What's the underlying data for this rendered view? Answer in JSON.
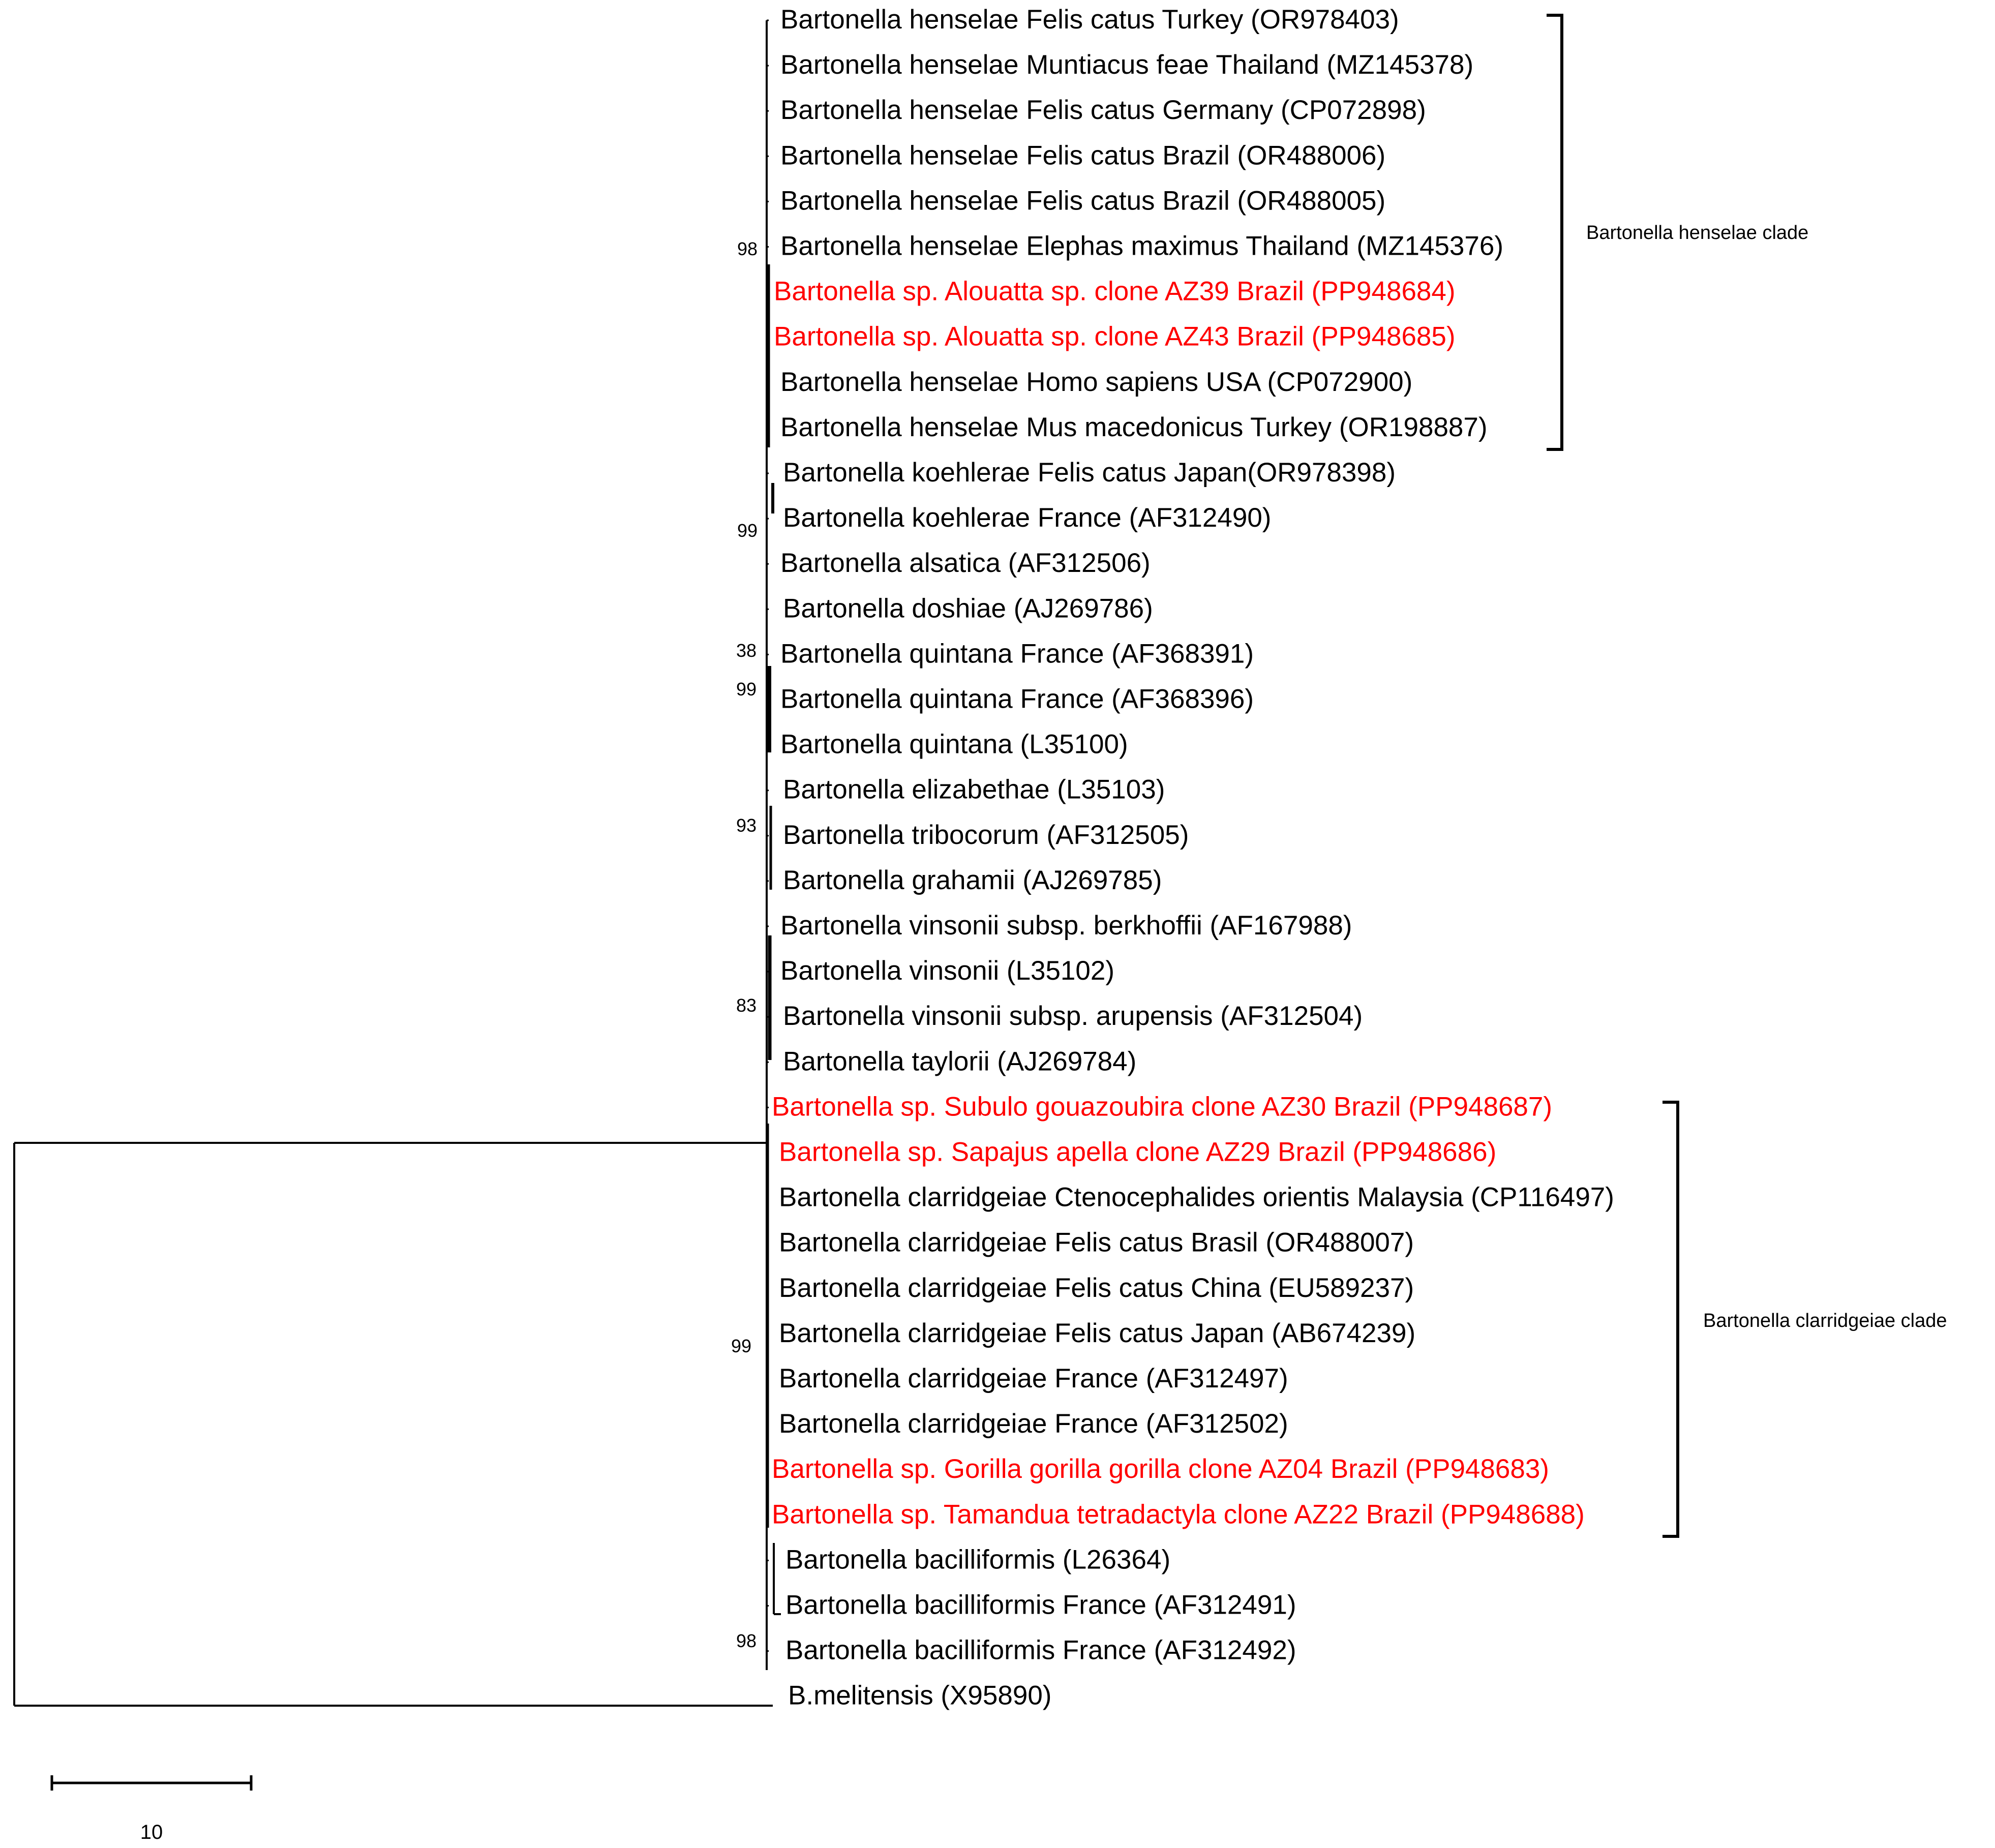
{
  "colors": {
    "default": "#000000",
    "highlight": "#ff0000",
    "background": "#ffffff"
  },
  "taxa": [
    {
      "label": "Bartonella henselae Felis catus Turkey (OR978403)",
      "highlight": false
    },
    {
      "label": "Bartonella henselae Muntiacus feae Thailand (MZ145378)",
      "highlight": false
    },
    {
      "label": "Bartonella henselae Felis catus Germany (CP072898)",
      "highlight": false
    },
    {
      "label": "Bartonella henselae Felis catus Brazil (OR488006)",
      "highlight": false
    },
    {
      "label": "Bartonella henselae Felis catus Brazil (OR488005)",
      "highlight": false
    },
    {
      "label": "Bartonella henselae Elephas maximus Thailand (MZ145376)",
      "highlight": false
    },
    {
      "label": "Bartonella sp. Alouatta sp. clone AZ39 Brazil (PP948684)",
      "highlight": true
    },
    {
      "label": "Bartonella sp. Alouatta sp. clone AZ43 Brazil (PP948685)",
      "highlight": true
    },
    {
      "label": "Bartonella henselae Homo sapiens USA (CP072900)",
      "highlight": false
    },
    {
      "label": "Bartonella henselae Mus macedonicus Turkey (OR198887)",
      "highlight": false
    },
    {
      "label": "Bartonella koehlerae Felis catus Japan(OR978398)",
      "highlight": false
    },
    {
      "label": "Bartonella koehlerae France (AF312490)",
      "highlight": false
    },
    {
      "label": "Bartonella alsatica (AF312506)",
      "highlight": false
    },
    {
      "label": "Bartonella doshiae (AJ269786)",
      "highlight": false
    },
    {
      "label": "Bartonella quintana France (AF368391)",
      "highlight": false
    },
    {
      "label": "Bartonella quintana France (AF368396)",
      "highlight": false
    },
    {
      "label": "Bartonella quintana (L35100)",
      "highlight": false
    },
    {
      "label": "Bartonella elizabethae (L35103)",
      "highlight": false
    },
    {
      "label": "Bartonella tribocorum (AF312505)",
      "highlight": false
    },
    {
      "label": "Bartonella grahamii (AJ269785)",
      "highlight": false
    },
    {
      "label": "Bartonella vinsonii subsp. berkhoffii (AF167988)",
      "highlight": false
    },
    {
      "label": "Bartonella vinsonii (L35102)",
      "highlight": false
    },
    {
      "label": "Bartonella vinsonii subsp. arupensis (AF312504)",
      "highlight": false
    },
    {
      "label": "Bartonella taylorii (AJ269784)",
      "highlight": false
    },
    {
      "label": "Bartonella sp. Subulo gouazoubira clone AZ30 Brazil (PP948687)",
      "highlight": true
    },
    {
      "label": "Bartonella sp. Sapajus apella clone AZ29 Brazil (PP948686)",
      "highlight": true
    },
    {
      "label": "Bartonella clarridgeiae Ctenocephalides orientis Malaysia (CP116497)",
      "highlight": false
    },
    {
      "label": "Bartonella clarridgeiae Felis catus Brasil (OR488007)",
      "highlight": false
    },
    {
      "label": "Bartonella clarridgeiae Felis catus China (EU589237)",
      "highlight": false
    },
    {
      "label": "Bartonella clarridgeiae Felis catus Japan (AB674239)",
      "highlight": false
    },
    {
      "label": "Bartonella clarridgeiae France (AF312497)",
      "highlight": false
    },
    {
      "label": "Bartonella clarridgeiae France (AF312502)",
      "highlight": false
    },
    {
      "label": "Bartonella sp. Gorilla gorilla gorilla clone AZ04 Brazil (PP948683)",
      "highlight": true
    },
    {
      "label": "Bartonella sp. Tamandua tetradactyla clone AZ22 Brazil (PP948688)",
      "highlight": true
    },
    {
      "label": "Bartonella bacilliformis (L26364)",
      "highlight": false
    },
    {
      "label": "Bartonella bacilliformis France (AF312491)",
      "highlight": false
    },
    {
      "label": "Bartonella bacilliformis France (AF312492)",
      "highlight": false
    },
    {
      "label": "B.melitensis (X95890)",
      "highlight": false
    }
  ],
  "bootstrap": [
    "98",
    "99",
    "38",
    "99",
    "93",
    "83",
    "99",
    "98"
  ],
  "clades": [
    {
      "label": "Bartonella henselae clade"
    },
    {
      "label": "Bartonella clarridgeiae clade"
    }
  ],
  "scale_bar": {
    "label": "10",
    "length": 10
  }
}
